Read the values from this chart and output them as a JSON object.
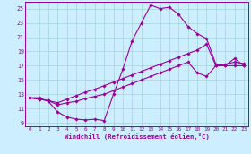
{
  "xlabel": "Windchill (Refroidissement éolien,°C)",
  "xlim": [
    -0.5,
    23.5
  ],
  "ylim": [
    8.5,
    26.0
  ],
  "xticks": [
    0,
    1,
    2,
    3,
    4,
    5,
    6,
    7,
    8,
    9,
    10,
    11,
    12,
    13,
    14,
    15,
    16,
    17,
    18,
    19,
    20,
    21,
    22,
    23
  ],
  "yticks": [
    9,
    11,
    13,
    15,
    17,
    19,
    21,
    23,
    25
  ],
  "bg_color": "#cceeff",
  "line_color": "#990099",
  "grid_color": "#99cccc",
  "line1_x": [
    0,
    1,
    2,
    3,
    4,
    5,
    6,
    7,
    8,
    9,
    10,
    11,
    12,
    13,
    14,
    15,
    16,
    17,
    18,
    19,
    20,
    21,
    22,
    23
  ],
  "line1_y": [
    12.5,
    12.5,
    12.0,
    10.5,
    9.8,
    9.5,
    9.4,
    9.5,
    9.3,
    13.0,
    16.5,
    20.5,
    23.0,
    25.5,
    25.0,
    25.2,
    24.2,
    22.5,
    21.5,
    20.8,
    17.2,
    17.0,
    18.0,
    17.0
  ],
  "line2_x": [
    0,
    1,
    2,
    3,
    4,
    5,
    6,
    7,
    8,
    9,
    10,
    11,
    12,
    13,
    14,
    15,
    16,
    17,
    18,
    19,
    20,
    21,
    22,
    23
  ],
  "line2_y": [
    12.5,
    12.3,
    12.1,
    11.8,
    12.3,
    12.8,
    13.3,
    13.7,
    14.2,
    14.7,
    15.2,
    15.7,
    16.2,
    16.7,
    17.2,
    17.7,
    18.2,
    18.7,
    19.2,
    20.0,
    17.0,
    17.2,
    17.5,
    17.3
  ],
  "line3_x": [
    0,
    1,
    2,
    3,
    4,
    5,
    6,
    7,
    8,
    9,
    10,
    11,
    12,
    13,
    14,
    15,
    16,
    17,
    18,
    19,
    20,
    21,
    22,
    23
  ],
  "line3_y": [
    12.5,
    12.3,
    12.1,
    11.5,
    11.8,
    12.0,
    12.4,
    12.7,
    13.0,
    13.5,
    14.0,
    14.5,
    15.0,
    15.5,
    16.0,
    16.5,
    17.0,
    17.5,
    16.0,
    15.5,
    17.0,
    17.0,
    17.0,
    17.0
  ]
}
